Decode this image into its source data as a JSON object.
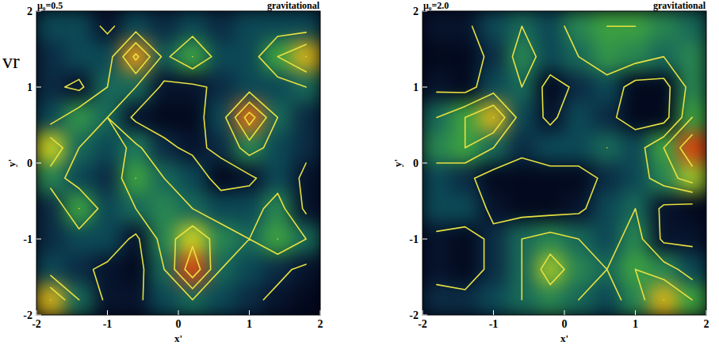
{
  "chart_data": [
    {
      "type": "heatmap",
      "title": "μ₀=0.5",
      "subtitle": "gravitational",
      "annotation": "vr",
      "x_label": "x'",
      "y_label": "y'",
      "xlim": [
        -2,
        2
      ],
      "ylim": [
        -2,
        2
      ],
      "xticks": [
        -2,
        -1,
        0,
        1,
        2
      ],
      "yticks": [
        -2,
        -1,
        0,
        1,
        2
      ],
      "x": [
        -1.8,
        -1.4,
        -1.0,
        -0.6,
        -0.2,
        0.2,
        0.6,
        1.0,
        1.4,
        1.8
      ],
      "y": [
        1.8,
        1.4,
        1.0,
        0.6,
        0.2,
        -0.2,
        -0.6,
        -1.0,
        -1.4,
        -1.8
      ],
      "values": [
        [
          0.3,
          0.3,
          0.1,
          0.3,
          0.2,
          0.3,
          0.2,
          0.3,
          0.3,
          0.3
        ],
        [
          0.2,
          0.3,
          0.3,
          0.85,
          0.35,
          0.6,
          0.3,
          0.3,
          0.6,
          0.8
        ],
        [
          0.2,
          0.1,
          0.4,
          0.4,
          0.1,
          0.1,
          0.2,
          0.3,
          0.3,
          0.4
        ],
        [
          0.3,
          0.55,
          0.4,
          0.1,
          0.05,
          0.05,
          0.3,
          0.9,
          0.4,
          0.2
        ],
        [
          0.75,
          0.4,
          0.3,
          0.45,
          0.2,
          0.1,
          0.2,
          0.5,
          0.3,
          0.2
        ],
        [
          0.5,
          0.3,
          0.2,
          0.6,
          0.4,
          0.3,
          0.05,
          0.1,
          0.3,
          0.1
        ],
        [
          0.2,
          0.6,
          0.3,
          0.4,
          0.5,
          0.4,
          0.3,
          0.3,
          0.5,
          0.1
        ],
        [
          0.2,
          0.3,
          0.3,
          0.1,
          0.5,
          0.75,
          0.5,
          0.4,
          0.6,
          0.4
        ],
        [
          0.3,
          0.2,
          0.1,
          0.05,
          0.4,
          0.95,
          0.4,
          0.3,
          0.2,
          0.1
        ],
        [
          0.8,
          0.4,
          0.1,
          0.1,
          0.3,
          0.4,
          0.3,
          0.2,
          0.1,
          0.05
        ]
      ],
      "contour_levels": [
        0.15,
        0.4,
        0.6,
        0.8
      ]
    },
    {
      "type": "heatmap",
      "title": "μ₀=2.0",
      "subtitle": "gravitational",
      "x_label": "x'",
      "y_label": "y'",
      "xlim": [
        -2,
        2
      ],
      "ylim": [
        -2,
        2
      ],
      "xticks": [
        -2,
        -1,
        0,
        1,
        2
      ],
      "yticks": [
        -2,
        -1,
        0,
        1,
        2
      ],
      "x": [
        -1.8,
        -1.4,
        -1.0,
        -0.6,
        -0.2,
        0.2,
        0.6,
        1.0,
        1.4,
        1.8
      ],
      "y": [
        1.8,
        1.4,
        1.0,
        0.6,
        0.2,
        -0.2,
        -0.6,
        -1.0,
        -1.4,
        -1.8
      ],
      "values": [
        [
          0.1,
          0.1,
          0.3,
          0.4,
          0.3,
          0.5,
          0.6,
          0.6,
          0.5,
          0.4
        ],
        [
          0.05,
          0.05,
          0.2,
          0.5,
          0.3,
          0.4,
          0.55,
          0.5,
          0.4,
          0.5
        ],
        [
          0.1,
          0.05,
          0.3,
          0.4,
          0.05,
          0.2,
          0.3,
          0.05,
          0.05,
          0.5
        ],
        [
          0.4,
          0.6,
          0.8,
          0.3,
          0.1,
          0.3,
          0.2,
          0.05,
          0.05,
          0.6
        ],
        [
          0.5,
          0.6,
          0.4,
          0.2,
          0.3,
          0.3,
          0.4,
          0.3,
          0.6,
          0.95
        ],
        [
          0.3,
          0.2,
          0.05,
          0.05,
          0.05,
          0.05,
          0.2,
          0.3,
          0.5,
          0.7
        ],
        [
          0.3,
          0.3,
          0.1,
          0.05,
          0.05,
          0.1,
          0.3,
          0.4,
          0.1,
          0.05
        ],
        [
          0.1,
          0.05,
          0.2,
          0.4,
          0.5,
          0.4,
          0.3,
          0.5,
          0.1,
          0.1
        ],
        [
          0.1,
          0.05,
          0.2,
          0.4,
          0.7,
          0.5,
          0.4,
          0.6,
          0.5,
          0.3
        ],
        [
          0.2,
          0.2,
          0.3,
          0.4,
          0.5,
          0.4,
          0.3,
          0.5,
          0.8,
          0.6
        ]
      ],
      "contour_levels": [
        0.15,
        0.4,
        0.6,
        0.8
      ]
    }
  ]
}
